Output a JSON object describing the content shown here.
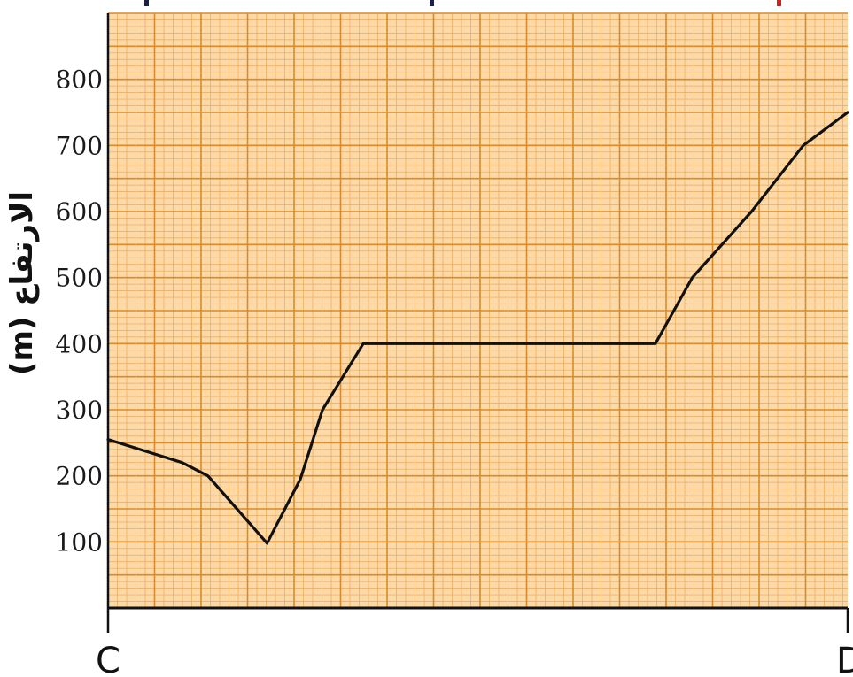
{
  "chart_data": {
    "type": "line",
    "ylabel": "الارتفاع (m)",
    "start_label": "C",
    "end_label": "D",
    "ylim": [
      0,
      900
    ],
    "xlim": [
      0,
      100
    ],
    "yticks": [
      100,
      200,
      300,
      400,
      500,
      600,
      700,
      800
    ],
    "ytick_labels": [
      "100",
      "200",
      "300",
      "400",
      "500",
      "600",
      "700",
      "800"
    ],
    "grid": true,
    "legend": "none",
    "series": [
      {
        "points": [
          [
            0,
            255
          ],
          [
            10,
            220
          ],
          [
            13.5,
            200
          ],
          [
            21.5,
            98
          ],
          [
            26,
            195
          ],
          [
            29,
            300
          ],
          [
            34.5,
            400
          ],
          [
            74,
            400
          ],
          [
            79,
            500
          ],
          [
            87,
            600
          ],
          [
            94,
            700
          ],
          [
            100,
            750
          ]
        ]
      }
    ],
    "colors": {
      "paper": "#fcd9a6",
      "grid_minor": "#eda858",
      "grid_major": "#d98a2a",
      "line": "#111111",
      "border": "#111111",
      "top_mark_dark": "#1a1f4a",
      "top_mark_red": "#cc2222"
    }
  }
}
